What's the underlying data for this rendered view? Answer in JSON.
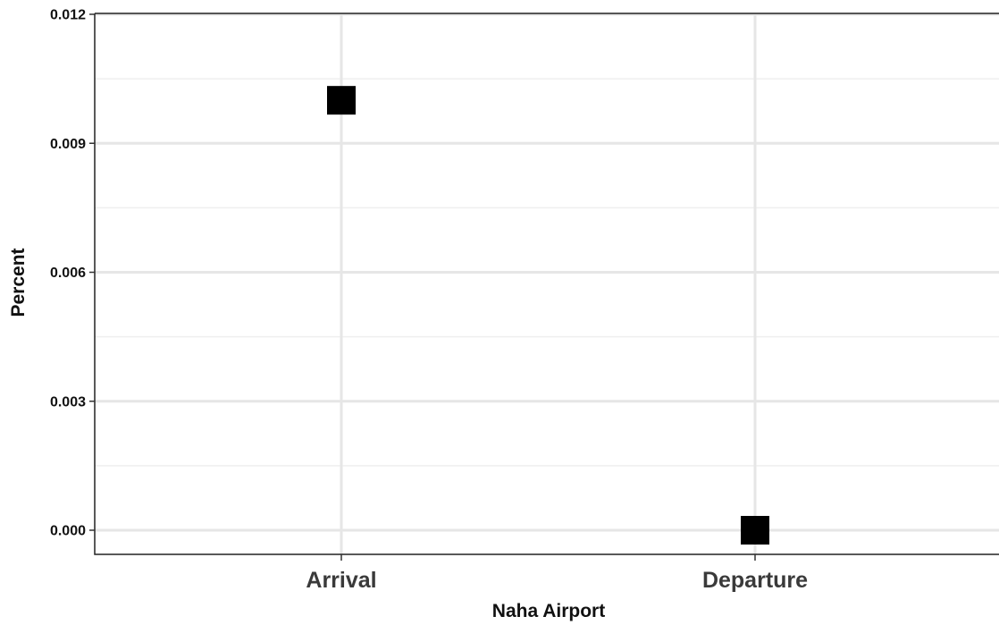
{
  "chart_data": {
    "type": "scatter",
    "title": "",
    "xlabel": "Naha Airport",
    "ylabel": "Percent",
    "categories": [
      "Arrival",
      "Departure"
    ],
    "values": [
      0.01,
      0.0
    ],
    "ylim": [
      0,
      0.012
    ],
    "yticks": [
      "0.000",
      "0.003",
      "0.006",
      "0.009",
      "0.012"
    ],
    "grid": true,
    "marker": "square",
    "marker_color": "#000000"
  }
}
